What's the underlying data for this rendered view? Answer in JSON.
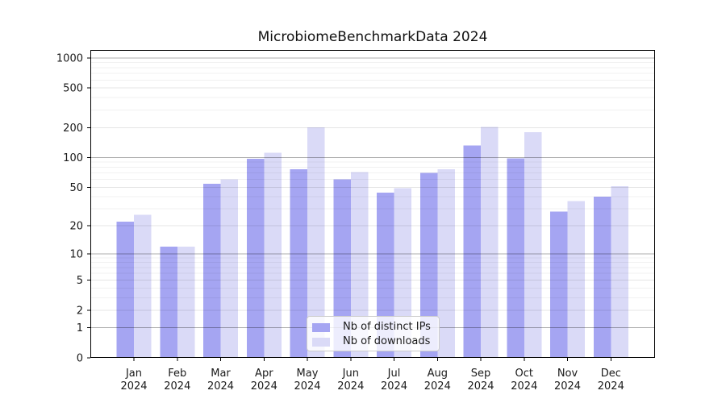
{
  "figure": {
    "title": "MicrobiomeBenchmarkData 2024"
  },
  "chart_data": {
    "type": "bar",
    "title": "MicrobiomeBenchmarkData 2024",
    "categories": [
      "Jan",
      "Feb",
      "Mar",
      "Apr",
      "May",
      "Jun",
      "Jul",
      "Aug",
      "Sep",
      "Oct",
      "Nov",
      "Dec"
    ],
    "category_year": "2024",
    "series": [
      {
        "name": "Nb of distinct IPs",
        "color": "#a5a5f2",
        "values": [
          22,
          12,
          54,
          97,
          76,
          60,
          44,
          70,
          132,
          98,
          28,
          40
        ]
      },
      {
        "name": "Nb of downloads",
        "color": "#dadaf7",
        "values": [
          26,
          12,
          60,
          112,
          201,
          71,
          49,
          76,
          204,
          180,
          36,
          51
        ]
      }
    ],
    "xlabel": "",
    "ylabel": "",
    "y_scale": "log1p",
    "y_ticks": [
      0,
      1,
      2,
      5,
      10,
      20,
      50,
      100,
      200,
      500,
      1000
    ],
    "y_major_gridlines": [
      1,
      10,
      100,
      1000
    ],
    "y_labeled_minor_gridlines": [
      2,
      5,
      20,
      50,
      200,
      500
    ],
    "ylim": [
      0,
      1220
    ],
    "grid": true,
    "legend_position": "lower center"
  },
  "colors": {
    "background": "#ffffff",
    "axis_frame": "#000000",
    "tick_text": "#1a1a1a",
    "grid_major": "rgba(0,0,0,0.32)",
    "grid_minor_labeled": "rgba(0,0,0,0.10)",
    "grid_minor_faint": "rgba(0,0,0,0.055)",
    "legend_border": "#cccccc",
    "legend_background": "rgba(255,255,255,0.8)"
  }
}
